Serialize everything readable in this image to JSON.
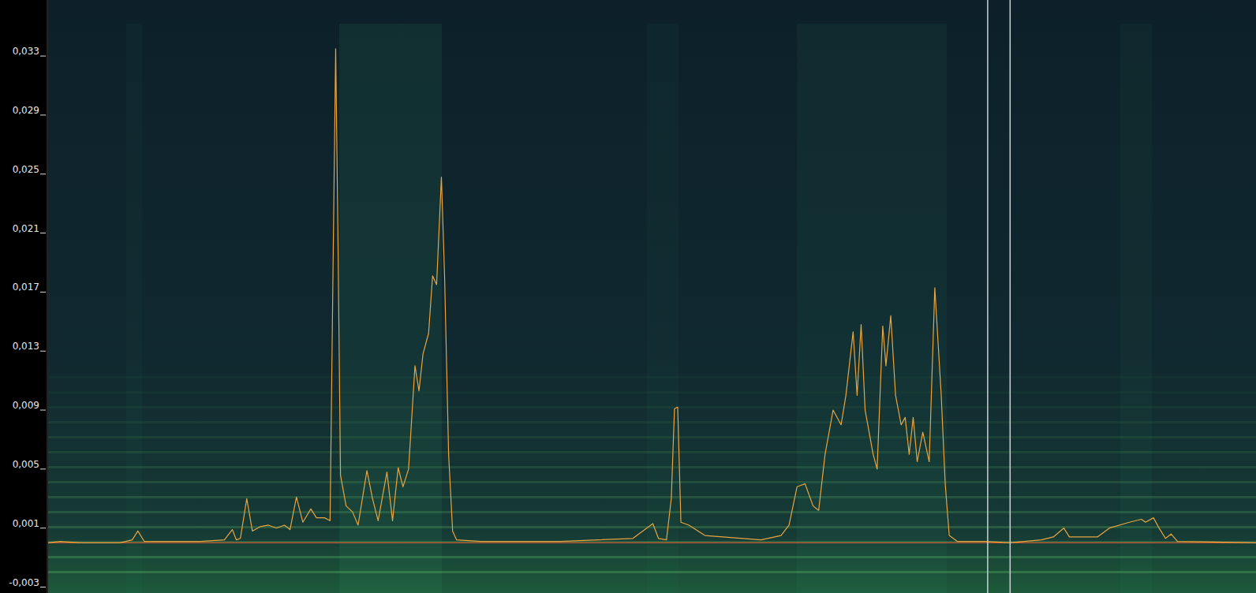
{
  "chart_data": {
    "type": "line",
    "x": [
      60,
      75,
      100,
      150,
      165,
      172,
      180,
      250,
      280,
      290,
      295,
      300,
      308,
      315,
      325,
      335,
      345,
      355,
      362,
      370,
      378,
      388,
      395,
      405,
      412,
      416,
      419,
      422,
      425,
      432,
      440,
      447,
      458,
      465,
      472,
      483,
      490,
      497,
      503,
      510,
      518,
      523,
      528,
      535,
      540,
      545,
      551,
      555,
      560,
      565,
      570,
      600,
      700,
      790,
      815,
      822,
      832,
      838,
      842,
      846,
      850,
      860,
      880,
      950,
      975,
      985,
      995,
      1005,
      1015,
      1022,
      1030,
      1040,
      1050,
      1056,
      1065,
      1070,
      1075,
      1080,
      1090,
      1095,
      1102,
      1106,
      1112,
      1118,
      1125,
      1130,
      1135,
      1140,
      1145,
      1152,
      1160,
      1167,
      1175,
      1180,
      1185,
      1195,
      1230,
      1260,
      1300,
      1315,
      1328,
      1335,
      1370,
      1385,
      1410,
      1425,
      1430,
      1440,
      1447,
      1455,
      1462,
      1470,
      1568
    ],
    "series": [
      {
        "name": null,
        "color": "#e9a440",
        "values": [
          0.0,
          0.0001,
          0.0,
          0.0,
          0.0002,
          0.0008,
          0.0001,
          0.0001,
          0.0002,
          0.0009,
          0.0002,
          0.0003,
          0.003,
          0.0008,
          0.0011,
          0.0012,
          0.001,
          0.0012,
          0.0009,
          0.0031,
          0.0014,
          0.0023,
          0.0017,
          0.0017,
          0.0015,
          0.02,
          0.0335,
          0.02,
          0.0046,
          0.0025,
          0.0021,
          0.0012,
          0.0049,
          0.003,
          0.0015,
          0.0048,
          0.0015,
          0.0051,
          0.0038,
          0.005,
          0.012,
          0.0103,
          0.0128,
          0.0142,
          0.0181,
          0.0175,
          0.0248,
          0.018,
          0.006,
          0.0008,
          0.0002,
          0.0001,
          0.0001,
          0.0003,
          0.0013,
          0.0003,
          0.0002,
          0.003,
          0.0091,
          0.0092,
          0.0014,
          0.0012,
          0.0005,
          0.0002,
          0.0005,
          0.0012,
          0.0038,
          0.004,
          0.0025,
          0.0022,
          0.006,
          0.009,
          0.008,
          0.01,
          0.0143,
          0.01,
          0.0148,
          0.009,
          0.006,
          0.005,
          0.0147,
          0.012,
          0.0154,
          0.01,
          0.008,
          0.0085,
          0.006,
          0.0085,
          0.0055,
          0.0075,
          0.0055,
          0.0173,
          0.01,
          0.004,
          0.0005,
          0.0001,
          0.0001,
          0.0,
          0.0002,
          0.0004,
          0.001,
          0.0004,
          0.0004,
          0.001,
          0.0014,
          0.0016,
          0.0014,
          0.0017,
          0.001,
          0.0003,
          0.0006,
          0.0001,
          0.0
        ]
      }
    ],
    "xlim": [
      60,
      1568
    ],
    "ylim": [
      -0.0034,
      0.0368
    ],
    "yticks": [
      {
        "value": 0.033,
        "label": "0,033"
      },
      {
        "value": 0.029,
        "label": "0,029"
      },
      {
        "value": 0.025,
        "label": "0,025"
      },
      {
        "value": 0.021,
        "label": "0,021"
      },
      {
        "value": 0.017,
        "label": "0,017"
      },
      {
        "value": 0.013,
        "label": "0,013"
      },
      {
        "value": 0.009,
        "label": "0,009"
      },
      {
        "value": 0.005,
        "label": "0,005"
      },
      {
        "value": 0.001,
        "label": "0,001"
      },
      {
        "value": -0.003,
        "label": "-0,003"
      }
    ],
    "baseline": 0,
    "cursors": [
      1233,
      1261
    ],
    "grid": false,
    "tick_labels": "y"
  }
}
